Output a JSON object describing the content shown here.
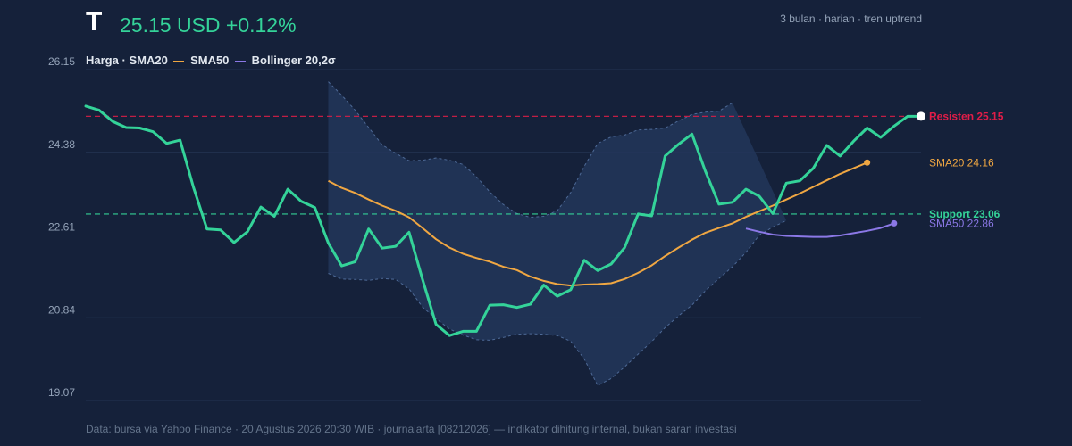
{
  "header": {
    "ticker": "T",
    "price_text": "25.15 USD +0.12%",
    "meta": "3 bulan · harian · tren uptrend"
  },
  "legend": {
    "price": "Harga",
    "sep": "·",
    "sma20": "SMA20",
    "sma50": "SMA50",
    "bollinger": "Bollinger 20,2σ"
  },
  "footer": "Data: bursa via Yahoo Finance · 20 Agustus 2026 20:30 WIB · journalarta [08212026] — indikator dihitung internal, bukan saran investasi",
  "colors": {
    "background": "#15213a",
    "price": "#34d399",
    "sma20": "#f0a742",
    "sma50": "#8b78e6",
    "band_fill": "#22365a",
    "band_edge": "#4e6a97",
    "resistance": "#e11d48",
    "support": "#34d399",
    "grid": "#243452"
  },
  "chart_data": {
    "type": "line",
    "ylim": [
      19.07,
      26.15
    ],
    "yticks": [
      "26.15",
      "24.38",
      "22.61",
      "20.84",
      "19.07"
    ],
    "grid": true,
    "series": [
      {
        "name": "Harga",
        "values": [
          25.37,
          25.28,
          25.04,
          24.91,
          24.9,
          24.82,
          24.57,
          24.64,
          23.63,
          22.74,
          22.72,
          22.45,
          22.68,
          23.21,
          23.01,
          23.59,
          23.33,
          23.2,
          22.44,
          21.95,
          22.04,
          22.74,
          22.33,
          22.37,
          22.67,
          21.66,
          20.7,
          20.46,
          20.55,
          20.55,
          21.11,
          21.12,
          21.06,
          21.13,
          21.54,
          21.3,
          21.44,
          22.07,
          21.85,
          21.99,
          22.34,
          23.06,
          23.02,
          24.3,
          24.55,
          24.77,
          23.97,
          23.27,
          23.31,
          23.59,
          23.44,
          23.07,
          23.72,
          23.77,
          24.04,
          24.53,
          24.3,
          24.62,
          24.9,
          24.7,
          24.94,
          25.15,
          25.15
        ]
      },
      {
        "name": "SMA20",
        "values": [
          null,
          null,
          null,
          null,
          null,
          null,
          null,
          null,
          null,
          null,
          null,
          null,
          null,
          null,
          null,
          null,
          null,
          null,
          23.77,
          23.62,
          23.51,
          23.37,
          23.24,
          23.13,
          22.99,
          22.76,
          22.52,
          22.34,
          22.21,
          22.12,
          22.04,
          21.93,
          21.86,
          21.72,
          21.63,
          21.56,
          21.53,
          21.55,
          21.56,
          21.58,
          21.67,
          21.8,
          21.96,
          22.16,
          22.34,
          22.51,
          22.66,
          22.76,
          22.86,
          23.0,
          23.12,
          23.24,
          23.37,
          23.5,
          23.64,
          23.78,
          23.92,
          24.04,
          24.16
        ]
      },
      {
        "name": "SMA50",
        "values": [
          null,
          null,
          null,
          null,
          null,
          null,
          null,
          null,
          null,
          null,
          null,
          null,
          null,
          null,
          null,
          null,
          null,
          null,
          null,
          null,
          null,
          null,
          null,
          null,
          null,
          null,
          null,
          null,
          null,
          null,
          null,
          null,
          null,
          null,
          null,
          null,
          null,
          null,
          null,
          null,
          null,
          null,
          null,
          null,
          null,
          null,
          null,
          null,
          null,
          22.75,
          22.68,
          22.62,
          22.59,
          22.58,
          22.57,
          22.57,
          22.6,
          22.65,
          22.7,
          22.76,
          22.86
        ]
      },
      {
        "name": "Bollinger 20,2σ",
        "upper": [
          null,
          null,
          null,
          null,
          null,
          null,
          null,
          null,
          null,
          null,
          null,
          null,
          null,
          null,
          null,
          null,
          null,
          null,
          25.89,
          25.6,
          25.28,
          24.91,
          24.54,
          24.36,
          24.2,
          24.21,
          24.26,
          24.21,
          24.12,
          23.86,
          23.53,
          23.26,
          23.07,
          22.99,
          23.01,
          23.13,
          23.52,
          24.08,
          24.57,
          24.71,
          24.75,
          24.86,
          24.87,
          24.9,
          25.05,
          25.19,
          25.24,
          25.26,
          25.44
        ]
      },
      {
        "name": "Bollinger lower",
        "lower": [
          null,
          null,
          null,
          null,
          null,
          null,
          null,
          null,
          null,
          null,
          null,
          null,
          null,
          null,
          null,
          null,
          null,
          null,
          21.79,
          21.67,
          21.66,
          21.64,
          21.68,
          21.66,
          21.46,
          21.07,
          20.82,
          20.6,
          20.47,
          20.37,
          20.36,
          20.42,
          20.49,
          20.5,
          20.49,
          20.46,
          20.34,
          19.96,
          19.39,
          19.54,
          19.79,
          20.06,
          20.33,
          20.63,
          20.88,
          21.11,
          21.42,
          21.68,
          21.93,
          22.24,
          22.61,
          22.78,
          22.92
        ]
      }
    ],
    "resistance": {
      "label": "Resisten 25.15",
      "value": 25.15
    },
    "support": {
      "label": "Support 23.06",
      "value": 23.06
    },
    "end_labels": {
      "sma20": "SMA20 24.16",
      "sma50": "SMA50 22.86"
    }
  }
}
